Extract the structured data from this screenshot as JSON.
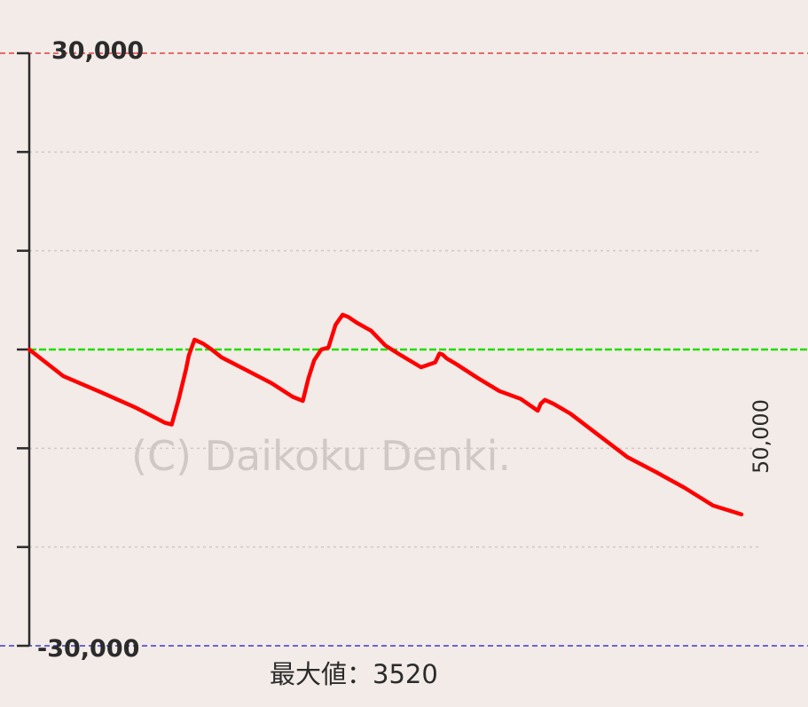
{
  "chart_data": {
    "type": "line",
    "ylim": [
      -30000,
      30000
    ],
    "xlim": [
      0,
      50000
    ],
    "y_tick_labels": [
      "30,000",
      "-30,000"
    ],
    "x_end_label": "50,000",
    "max_label": "最大値：3520",
    "watermark": "(C) Daikoku Denki.",
    "grid": true,
    "reference_lines": {
      "upper": 30000,
      "zero": 0,
      "lower": -30000
    },
    "colors": {
      "series": "#ff0000",
      "zero_line": "#22dd00",
      "upper_line": "#e04040",
      "lower_line": "#3a3ad0",
      "grid": "#cfc8c4",
      "axis": "#2b2b2b",
      "background": "#f3ebe7"
    },
    "series": [
      {
        "x": [
          0,
          2400,
          5000,
          7500,
          9500,
          10000,
          10500,
          11000,
          11200,
          11600,
          12200,
          12800,
          13500,
          15000,
          17000,
          18500,
          19200,
          19600,
          20000,
          20500,
          21000,
          21500,
          22000,
          22400,
          23000,
          24000,
          25000,
          26000,
          27500,
          28500,
          28800,
          29000,
          29300,
          30000,
          31500,
          33000,
          34500,
          35700,
          35900,
          36200,
          36800,
          38000,
          40000,
          42000,
          44000,
          46000,
          48000,
          50000
        ],
        "y": [
          0,
          -2700,
          -4300,
          -5900,
          -7400,
          -7600,
          -5000,
          -2000,
          -600,
          1000,
          600,
          0,
          -800,
          -1900,
          -3400,
          -4800,
          -5200,
          -2900,
          -1100,
          0,
          200,
          2500,
          3520,
          3300,
          2700,
          1900,
          400,
          -500,
          -1800,
          -1300,
          -400,
          -500,
          -900,
          -1500,
          -2900,
          -4200,
          -5000,
          -6200,
          -5500,
          -5100,
          -5500,
          -6500,
          -8700,
          -10900,
          -12400,
          -14000,
          -15800,
          -16700
        ]
      }
    ]
  }
}
